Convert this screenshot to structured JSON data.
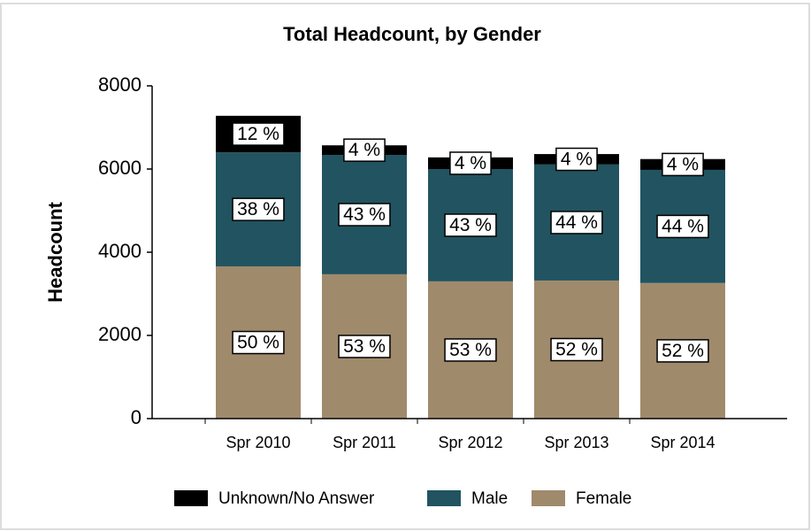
{
  "chart_data": {
    "type": "stacked-bar",
    "title": "Total Headcount, by Gender",
    "y_label": "Headcount",
    "categories": [
      "Spr 2010",
      "Spr 2011",
      "Spr 2012",
      "Spr 2013",
      "Spr 2014"
    ],
    "series": [
      {
        "name": "Female",
        "color": "#a08a6c",
        "values": [
          3660,
          3470,
          3300,
          3320,
          3260
        ],
        "value_labels": [
          "50 %",
          "53 %",
          "53 %",
          "52 %",
          "52 %"
        ]
      },
      {
        "name": "Male",
        "color": "#215460",
        "values": [
          2740,
          2870,
          2700,
          2790,
          2720
        ],
        "value_labels": [
          "38 %",
          "43 %",
          "43 %",
          "44 %",
          "44 %"
        ]
      },
      {
        "name": "Unknown/No Answer",
        "color": "#000000",
        "values": [
          880,
          230,
          280,
          250,
          260
        ],
        "value_labels": [
          "12 %",
          "4 %",
          "4 %",
          "4 %",
          "4 %"
        ]
      }
    ],
    "ylim": [
      0,
      8000
    ],
    "yticks": [
      0,
      2000,
      4000,
      6000,
      8000
    ],
    "legend": "bottom"
  }
}
